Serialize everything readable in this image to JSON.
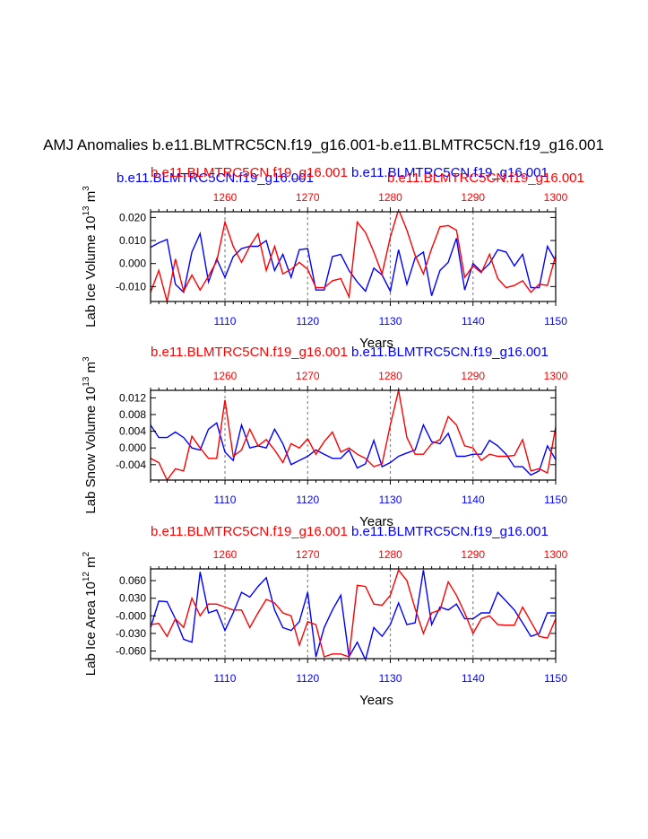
{
  "main_title": "AMJ Anomalies b.e11.BLMTRC5CN.f19_g16.001-b.e11.BLMTRC5CN.f19_g16.001",
  "colors": {
    "red": "#ff0000",
    "blue": "#0000ff",
    "grid": "#888888",
    "axis": "#000000"
  },
  "chart_data": [
    {
      "type": "line",
      "name": "Lab Ice Volume",
      "ylabel": "Lab Ice Volume 10",
      "ylabel_exp": "13",
      "ylabel_unit": " m",
      "ylabel_unit_exp": "3",
      "xlabel": "Years",
      "top_labels": [
        "b.e11.BLMTRC5CN.f19_g16.001",
        "b.e11.BLMTRC5CN.f19_g16.001",
        "b.e11.BLMTRC5CN.f19_g16.001",
        "b.e11.BLMTRC5CN.f19_g16.001"
      ],
      "bottom_axis": {
        "range": [
          1101,
          1150
        ],
        "ticks": [
          1110,
          1120,
          1130,
          1140,
          1150
        ],
        "labels": [
          "1110",
          "1120",
          "1130",
          "1140",
          "1150"
        ]
      },
      "top_axis": {
        "range": [
          1251,
          1300
        ],
        "ticks": [
          1260,
          1270,
          1280,
          1290,
          1300
        ],
        "labels": [
          "1260",
          "1270",
          "1280",
          "1290",
          "1300"
        ]
      },
      "ylim": [
        -0.0165,
        0.0225
      ],
      "yticks": [
        -0.01,
        0.0,
        0.01,
        0.02
      ],
      "ytick_labels": [
        "-0.010",
        "0.000",
        "0.010",
        "0.020"
      ],
      "series": [
        {
          "name": "b.e11.BLMTRC5CN.f19_g16.001 (years 1101-1150)",
          "color": "blue",
          "x_start": 1101,
          "values": [
            0.007,
            0.009,
            0.0105,
            -0.009,
            -0.0125,
            0.005,
            0.013,
            -0.008,
            0.002,
            -0.006,
            0.003,
            0.0065,
            0.0075,
            0.0075,
            0.01,
            -0.003,
            0.004,
            -0.006,
            0.006,
            0.0065,
            -0.0115,
            -0.0115,
            0.003,
            0.004,
            -0.003,
            -0.008,
            -0.012,
            -0.002,
            -0.005,
            -0.012,
            0.006,
            -0.009,
            0.0025,
            0.005,
            -0.014,
            -0.003,
            0.0005,
            0.011,
            -0.0115,
            0.0,
            -0.0035,
            0.0,
            0.006,
            0.005,
            -0.001,
            0.004,
            -0.0105,
            -0.0105,
            0.0075,
            0.001
          ]
        },
        {
          "name": "b.e11.BLMTRC5CN.f19_g16.001 (years 1251-1300)",
          "color": "red",
          "x_start": 1251,
          "values": [
            -0.0125,
            -0.003,
            -0.0165,
            0.002,
            -0.012,
            -0.005,
            -0.0115,
            -0.0055,
            0.001,
            0.018,
            0.0075,
            0.0005,
            0.0075,
            0.013,
            -0.003,
            0.0075,
            -0.0045,
            -0.0025,
            0.0005,
            -0.0025,
            -0.0105,
            -0.0105,
            -0.0075,
            -0.0065,
            -0.0145,
            0.018,
            0.0135,
            0.005,
            -0.0045,
            0.0115,
            0.0235,
            0.0145,
            0.0035,
            -0.0045,
            0.0065,
            0.016,
            0.0165,
            0.0145,
            -0.006,
            -0.001,
            -0.004,
            0.004,
            -0.0065,
            -0.0105,
            -0.0095,
            -0.0075,
            -0.0125,
            -0.009,
            -0.0095,
            0.0035
          ]
        }
      ]
    },
    {
      "type": "line",
      "name": "Lab Snow Volume",
      "ylabel": "Lab Snow Volume 10",
      "ylabel_exp": "13",
      "ylabel_unit": " m",
      "ylabel_unit_exp": "3",
      "xlabel": "Years",
      "top_labels": [
        "b.e11.BLMTRC5CN.f19_g16.001",
        "b.e11.BLMTRC5CN.f19_g16.001"
      ],
      "bottom_axis": {
        "range": [
          1101,
          1150
        ],
        "ticks": [
          1110,
          1120,
          1130,
          1140,
          1150
        ],
        "labels": [
          "1110",
          "1120",
          "1130",
          "1140",
          "1150"
        ]
      },
      "top_axis": {
        "range": [
          1251,
          1300
        ],
        "ticks": [
          1260,
          1270,
          1280,
          1290,
          1300
        ],
        "labels": [
          "1260",
          "1270",
          "1280",
          "1290",
          "1300"
        ]
      },
      "ylim": [
        -0.0077,
        0.0138
      ],
      "yticks": [
        -0.004,
        0.0,
        0.004,
        0.008,
        0.012
      ],
      "ytick_labels": [
        "-0.004",
        "0.000",
        "0.004",
        "0.008",
        "0.012"
      ],
      "series": [
        {
          "name": "b.e11.BLMTRC5CN.f19_g16.001 (years 1101-1150)",
          "color": "blue",
          "x_start": 1101,
          "values": [
            0.0055,
            0.0025,
            0.0025,
            0.0038,
            0.0025,
            0.0,
            -0.0005,
            0.0045,
            0.006,
            -0.001,
            -0.003,
            0.0055,
            0.0,
            0.0005,
            0.0,
            0.0045,
            0.001,
            -0.004,
            -0.003,
            -0.002,
            -0.0005,
            -0.0015,
            -0.0025,
            -0.0025,
            -0.0005,
            -0.0048,
            -0.0038,
            0.0018,
            -0.0045,
            -0.0035,
            -0.002,
            -0.0012,
            -0.0005,
            0.0055,
            0.0015,
            0.001,
            0.0035,
            -0.002,
            -0.002,
            -0.0015,
            -0.0015,
            0.0018,
            0.0005,
            -0.0015,
            -0.0045,
            -0.0045,
            -0.0065,
            -0.0055,
            0.0005,
            -0.0028
          ]
        },
        {
          "name": "b.e11.BLMTRC5CN.f19_g16.001 (years 1251-1300)",
          "color": "red",
          "x_start": 1251,
          "values": [
            -0.0025,
            -0.0035,
            -0.0077,
            -0.005,
            -0.0055,
            0.0028,
            0.0,
            -0.0025,
            -0.0025,
            0.0115,
            -0.002,
            -0.0005,
            0.0045,
            0.0005,
            0.002,
            -0.0005,
            -0.0035,
            0.001,
            -0.0,
            0.0022,
            -0.0015,
            0.0015,
            0.0038,
            -0.001,
            0.0,
            -0.0015,
            -0.0025,
            -0.0045,
            -0.0038,
            0.0055,
            0.0138,
            0.0025,
            -0.0015,
            -0.0015,
            0.001,
            0.002,
            0.0075,
            0.0055,
            0.0005,
            0.0,
            -0.003,
            -0.0015,
            -0.002,
            -0.002,
            -0.0018,
            0.002,
            -0.0055,
            -0.005,
            -0.006,
            0.005
          ]
        }
      ]
    },
    {
      "type": "line",
      "name": "Lab Ice Area",
      "ylabel": "Lab Ice Area 10",
      "ylabel_exp": "12",
      "ylabel_unit": " m",
      "ylabel_unit_exp": "2",
      "xlabel": "Years",
      "top_labels": [
        "b.e11.BLMTRC5CN.f19_g16.001",
        "b.e11.BLMTRC5CN.f19_g16.001"
      ],
      "bottom_axis": {
        "range": [
          1101,
          1150
        ],
        "ticks": [
          1110,
          1120,
          1130,
          1140,
          1150
        ],
        "labels": [
          "1110",
          "1120",
          "1130",
          "1140",
          "1150"
        ]
      },
      "top_axis": {
        "range": [
          1251,
          1300
        ],
        "ticks": [
          1260,
          1270,
          1280,
          1290,
          1300
        ],
        "labels": [
          "1260",
          "1270",
          "1280",
          "1290",
          "1300"
        ]
      },
      "ylim": [
        -0.073,
        0.08
      ],
      "yticks": [
        -0.06,
        -0.03,
        0.0,
        0.03,
        0.06
      ],
      "ytick_labels": [
        "-0.060",
        "-0.030",
        "-0.000",
        "0.030",
        "0.060"
      ],
      "series": [
        {
          "name": "b.e11.BLMTRC5CN.f19_g16.001 (years 1101-1150)",
          "color": "blue",
          "x_start": 1101,
          "values": [
            -0.02,
            0.025,
            0.024,
            -0.005,
            -0.04,
            -0.045,
            0.075,
            0.005,
            0.01,
            -0.025,
            0.005,
            0.04,
            0.032,
            0.05,
            0.065,
            0.01,
            -0.02,
            -0.025,
            -0.01,
            0.04,
            -0.07,
            -0.02,
            0.01,
            0.035,
            -0.07,
            -0.045,
            -0.075,
            -0.02,
            -0.035,
            -0.015,
            0.022,
            -0.015,
            -0.012,
            0.078,
            -0.015,
            0.015,
            0.01,
            0.02,
            -0.005,
            -0.005,
            0.005,
            0.005,
            0.04,
            0.025,
            0.01,
            -0.012,
            -0.035,
            -0.03,
            0.005,
            0.005
          ]
        },
        {
          "name": "b.e11.BLMTRC5CN.f19_g16.001 (years 1251-1300)",
          "color": "red",
          "x_start": 1251,
          "values": [
            -0.015,
            -0.013,
            -0.035,
            -0.005,
            -0.02,
            0.03,
            0.0,
            0.02,
            0.02,
            0.015,
            0.01,
            0.01,
            -0.02,
            0.005,
            0.028,
            0.022,
            0.005,
            0.0,
            -0.05,
            -0.01,
            -0.015,
            -0.07,
            -0.065,
            -0.065,
            -0.07,
            0.052,
            0.05,
            0.02,
            0.018,
            0.035,
            0.078,
            0.06,
            0.012,
            -0.03,
            0.005,
            0.01,
            0.058,
            0.035,
            0.005,
            -0.03,
            -0.005,
            -0.0,
            -0.015,
            -0.016,
            -0.016,
            0.015,
            -0.01,
            -0.035,
            -0.038,
            -0.005
          ]
        }
      ]
    }
  ]
}
